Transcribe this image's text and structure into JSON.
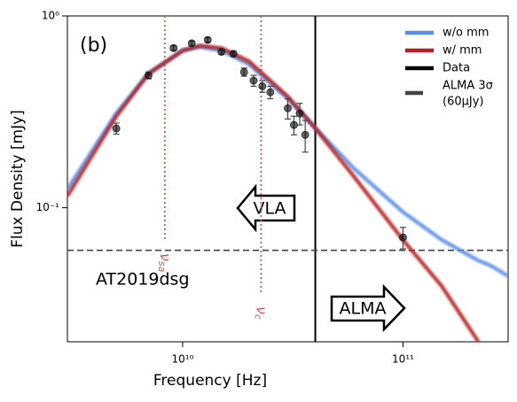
{
  "chart_data": {
    "type": "line",
    "xlabel": "Frequency [Hz]",
    "ylabel": "Flux Density [mJy]",
    "xscale": "log",
    "yscale": "log",
    "xlim": [
      3000000000.0,
      300000000000.0
    ],
    "ylim": [
      0.02,
      1
    ],
    "xticks": [
      {
        "value": 10000000000.0,
        "label": "10¹⁰"
      },
      {
        "value": 100000000000.0,
        "label": "10¹¹"
      }
    ],
    "yticks": [
      {
        "value": 0.1,
        "label": "10⁻¹"
      },
      {
        "value": 1,
        "label": "10⁰"
      }
    ],
    "legend": "upper right",
    "x": [
      3000000000.0,
      5000000000.0,
      7000000000.0,
      10000000000.0,
      12000000000.0,
      15000000000.0,
      20000000000.0,
      30000000000.0,
      40000000000.0,
      60000000000.0,
      100000000000.0,
      150000000000.0,
      220000000000.0,
      250000000000.0,
      300000000000.0
    ],
    "series": [
      {
        "name": "w/o mm",
        "color": "#5b8de8",
        "values": [
          0.125,
          0.31,
          0.5,
          0.66,
          0.69,
          0.66,
          0.56,
          0.37,
          0.26,
          0.16,
          0.095,
          0.068,
          0.053,
          0.05,
          0.044
        ]
      },
      {
        "name": "w/ mm",
        "color": "#b22222",
        "values": [
          0.115,
          0.3,
          0.5,
          0.66,
          0.7,
          0.68,
          0.58,
          0.38,
          0.26,
          0.145,
          0.068,
          0.039,
          0.02,
          null,
          null
        ]
      }
    ],
    "points": {
      "color": "#444444",
      "x": [
        5000000000.0,
        7000000000.0,
        9100000000.0,
        11000000000.0,
        13000000000.0,
        15000000000.0,
        17000000000.0,
        19000000000.0,
        21000000000.0,
        23000000000.0,
        25000000000.0,
        30000000000.0,
        32000000000.0,
        34000000000.0,
        36000000000.0,
        100000000000.0
      ],
      "y": [
        0.259,
        0.49,
        0.68,
        0.72,
        0.75,
        0.65,
        0.635,
        0.51,
        0.46,
        0.43,
        0.4,
        0.33,
        0.27,
        0.31,
        0.24,
        0.07
      ],
      "errors": [
        0.017,
        0.02,
        0.02,
        0.02,
        0.02,
        0.02,
        0.02,
        0.025,
        0.03,
        0.03,
        0.03,
        0.04,
        0.03,
        0.04,
        0.045,
        0.009
      ]
    },
    "vlines": [
      {
        "x": 40000000000.0,
        "name": "Data",
        "color": "#000000",
        "style": "solid"
      },
      {
        "x": 8300000000.0,
        "color": "#cd5c5c",
        "style": "dotted",
        "symbol": "ν",
        "subscript": "sa"
      },
      {
        "x": 22700000000.0,
        "color": "#cd5c5c",
        "style": "dotted",
        "symbol": "ν",
        "subscript": "c"
      }
    ],
    "hline": {
      "y": 0.06,
      "color": "#444444",
      "style": "dashed",
      "name_lines": [
        "ALMA 3σ",
        "(60μJy)"
      ]
    },
    "annotations": {
      "panel": "(b)",
      "source": "AT2019dsg",
      "left_arrow": "VLA",
      "right_arrow": "ALMA"
    }
  }
}
